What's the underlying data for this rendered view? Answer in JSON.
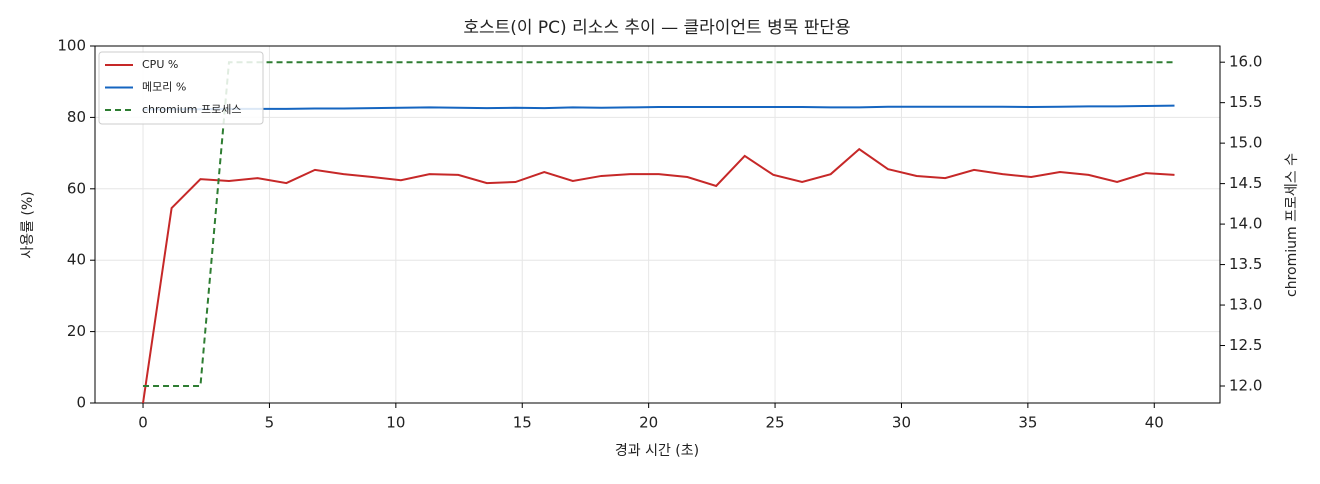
{
  "chart_data": {
    "type": "line",
    "title": "호스트(이 PC) 리소스 추이 — 클라이언트 병목 판단용",
    "xlabel": "경과 시간 (초)",
    "ylabel": "사용률 (%)",
    "y2label": "chromium 프로세스 수",
    "x": [
      0,
      1.13,
      2.27,
      3.4,
      4.53,
      5.67,
      6.8,
      7.93,
      9.07,
      10.2,
      11.33,
      12.47,
      13.6,
      14.73,
      15.87,
      17,
      18.13,
      19.27,
      20.4,
      21.53,
      22.67,
      23.8,
      24.93,
      26.07,
      27.2,
      28.33,
      29.47,
      30.6,
      31.73,
      32.87,
      34,
      35.13,
      36.27,
      37.4,
      38.53,
      39.67,
      40.8
    ],
    "series": [
      {
        "name": "CPU %",
        "color": "#c62828",
        "linestyle": "solid",
        "values": [
          0,
          54.6,
          62.7,
          62.2,
          63,
          61.6,
          65.3,
          64.1,
          63.3,
          62.4,
          64.1,
          63.9,
          61.6,
          61.9,
          64.7,
          62.2,
          63.6,
          64.1,
          64.1,
          63.3,
          60.8,
          69.2,
          63.9,
          61.9,
          64.1,
          71.1,
          65.5,
          63.6,
          63,
          65.3,
          64.1,
          63.3,
          64.7,
          63.9,
          61.9,
          64.4,
          63.9
        ]
      },
      {
        "name": "메모리 %",
        "color": "#1565c0",
        "linestyle": "solid",
        "values": [
          82.2,
          82.3,
          82.3,
          82.4,
          82.4,
          82.4,
          82.5,
          82.5,
          82.6,
          82.7,
          82.8,
          82.7,
          82.6,
          82.7,
          82.6,
          82.8,
          82.7,
          82.8,
          82.9,
          82.9,
          82.9,
          82.9,
          82.9,
          82.9,
          82.8,
          82.8,
          83,
          83,
          83,
          83,
          83,
          82.9,
          83,
          83.1,
          83.1,
          83.2,
          83.3
        ]
      },
      {
        "name": "chromium 프로세스",
        "color": "#2e7d32",
        "linestyle": "dashed",
        "axis": "y2",
        "values": [
          12,
          12,
          12,
          16,
          16,
          16,
          16,
          16,
          16,
          16,
          16,
          16,
          16,
          16,
          16,
          16,
          16,
          16,
          16,
          16,
          16,
          16,
          16,
          16,
          16,
          16,
          16,
          16,
          16,
          16,
          16,
          16,
          16,
          16,
          16,
          16,
          16
        ]
      }
    ],
    "xlim": [
      -1.9,
      42.6
    ],
    "xticks": [
      0,
      5,
      10,
      15,
      20,
      25,
      30,
      35,
      40
    ],
    "ylim": [
      0,
      100
    ],
    "yticks": [
      0,
      20,
      40,
      60,
      80,
      100
    ],
    "y2lim": [
      11.79,
      16.2
    ],
    "y2ticks": [
      {
        "value": 12,
        "label": "12.0"
      },
      12.5,
      {
        "value": 13,
        "label": "13.0"
      },
      13.5,
      {
        "value": 14,
        "label": "14.0"
      },
      14.5,
      {
        "value": 15,
        "label": "15.0"
      },
      15.5,
      {
        "value": 16,
        "label": "16.0"
      }
    ],
    "grid": true,
    "legend": "upper-left"
  }
}
